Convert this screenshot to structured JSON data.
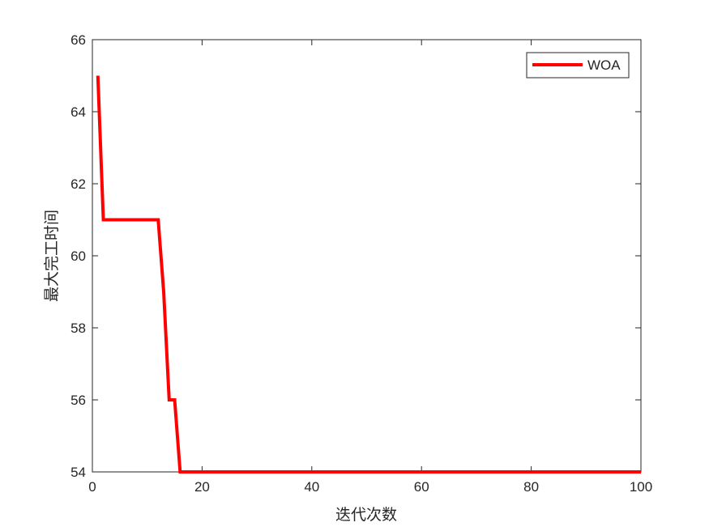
{
  "chart_data": {
    "type": "line",
    "title": "",
    "xlabel": "迭代次数",
    "ylabel": "最大完工时间",
    "xlim": [
      0,
      100
    ],
    "ylim": [
      54,
      66
    ],
    "xticks": [
      0,
      20,
      40,
      60,
      80,
      100
    ],
    "yticks": [
      54,
      56,
      58,
      60,
      62,
      64,
      66
    ],
    "grid": false,
    "legend_position": "top-right",
    "series": [
      {
        "name": "WOA",
        "color": "#ff0000",
        "x": [
          1,
          2,
          12,
          13,
          14,
          15,
          16,
          100
        ],
        "y": [
          65,
          61,
          61,
          59,
          56,
          56,
          54,
          54
        ]
      }
    ]
  }
}
